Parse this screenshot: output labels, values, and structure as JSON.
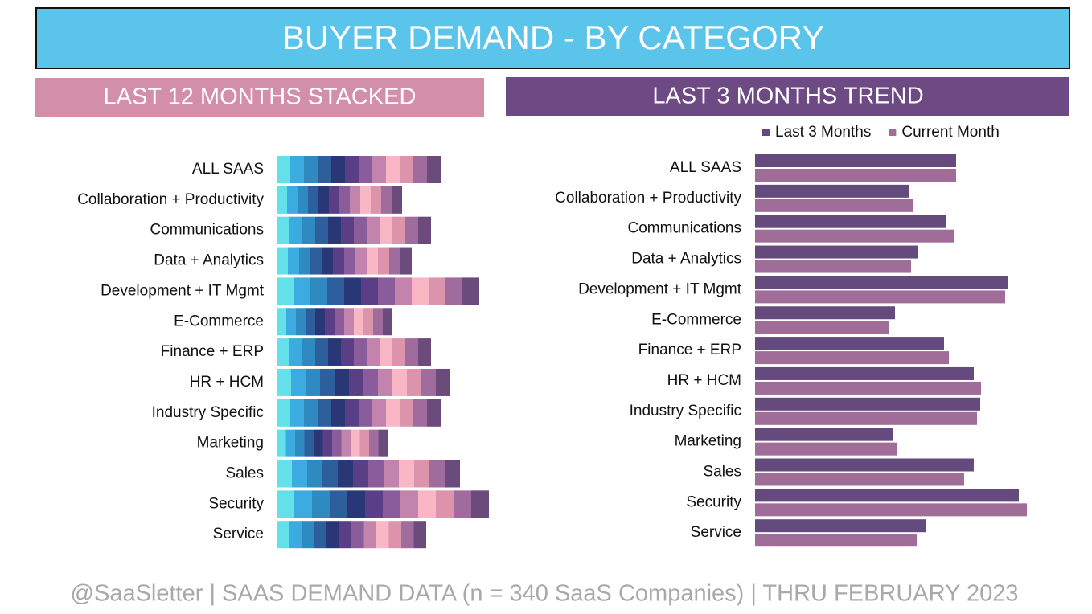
{
  "header": {
    "title": "BUYER DEMAND - BY CATEGORY"
  },
  "chart_data": [
    {
      "type": "stacked_bar",
      "title": "LAST 12 MONTHS STACKED",
      "categories": [
        "ALL SAAS",
        "Collaboration + Productivity",
        "Communications",
        "Data + Analytics",
        "Development + IT Mgmt",
        "E-Commerce",
        "Finance + ERP",
        "HR + HCM",
        "Industry Specific",
        "Marketing",
        "Sales",
        "Security",
        "Service"
      ],
      "xlim": [
        0,
        270
      ],
      "series": [
        {
          "color": "#63e0ea",
          "values": [
            17,
            13,
            16,
            14,
            21,
            12,
            16,
            18,
            17,
            11.5,
            19,
            22,
            15.5
          ]
        },
        {
          "color": "#3cabe0",
          "values": [
            17,
            13,
            16,
            14,
            21,
            12,
            16,
            18,
            17,
            11.5,
            19,
            22,
            15.5
          ]
        },
        {
          "color": "#2f8ac2",
          "values": [
            17,
            13,
            16,
            14,
            21,
            12,
            16,
            18,
            17,
            11.5,
            19,
            22,
            15.5
          ]
        },
        {
          "color": "#2c5f9c",
          "values": [
            17,
            13,
            16,
            14,
            21,
            12,
            16,
            18,
            17,
            11.5,
            19,
            22,
            15.5
          ]
        },
        {
          "color": "#2a3777",
          "values": [
            17,
            13,
            16,
            14,
            21,
            12,
            16,
            18,
            17,
            11.5,
            19,
            22,
            15.5
          ]
        },
        {
          "color": "#5a3f86",
          "values": [
            17,
            13,
            16,
            14,
            21,
            12,
            16,
            18,
            17,
            11.5,
            19,
            22,
            15.5
          ]
        },
        {
          "color": "#8b5c9c",
          "values": [
            17,
            13,
            16,
            14,
            21,
            12,
            16,
            18,
            17,
            11.5,
            19,
            22,
            15.5
          ]
        },
        {
          "color": "#c283ac",
          "values": [
            17,
            13,
            16,
            14,
            21,
            12,
            16,
            18,
            17,
            11.5,
            19,
            22,
            15.5
          ]
        },
        {
          "color": "#f9b6c4",
          "values": [
            17,
            13,
            16,
            14,
            21,
            12,
            16,
            18,
            17,
            11.5,
            19,
            22,
            15.5
          ]
        },
        {
          "color": "#dc93ac",
          "values": [
            17,
            13,
            16,
            14,
            21,
            12,
            16,
            18,
            17,
            11.5,
            19,
            22,
            15.5
          ]
        },
        {
          "color": "#a06c9e",
          "values": [
            17,
            13,
            16,
            14,
            21,
            12,
            16,
            18,
            17,
            11.5,
            19,
            22,
            15.5
          ]
        },
        {
          "color": "#6b4a7c",
          "values": [
            17,
            13,
            16,
            14,
            21,
            12,
            16,
            18,
            17,
            11.5,
            19,
            22,
            15.5
          ]
        }
      ]
    },
    {
      "type": "grouped_bar",
      "title": "LAST 3 MONTHS TREND",
      "categories": [
        "ALL SAAS",
        "Collaboration + Productivity",
        "Communications",
        "Data + Analytics",
        "Development + IT Mgmt",
        "E-Commerce",
        "Finance + ERP",
        "HR + HCM",
        "Industry Specific",
        "Marketing",
        "Sales",
        "Security",
        "Service"
      ],
      "xlim": [
        0,
        340
      ],
      "legend": "top-right",
      "series": [
        {
          "name": "Last 3 Months",
          "color": "#654a7e",
          "values": [
            250,
            192,
            237,
            203,
            314,
            174,
            235,
            272,
            280,
            172,
            272,
            328,
            213
          ]
        },
        {
          "name": "Current Month",
          "color": "#a06d98",
          "values": [
            250,
            196,
            248,
            194,
            311,
            167,
            241,
            281,
            276,
            176,
            260,
            338,
            201
          ]
        }
      ]
    }
  ],
  "footer": "@SaaSletter | SAAS DEMAND DATA (n = 340 SaaS Companies) | THRU FEBRUARY 2023"
}
